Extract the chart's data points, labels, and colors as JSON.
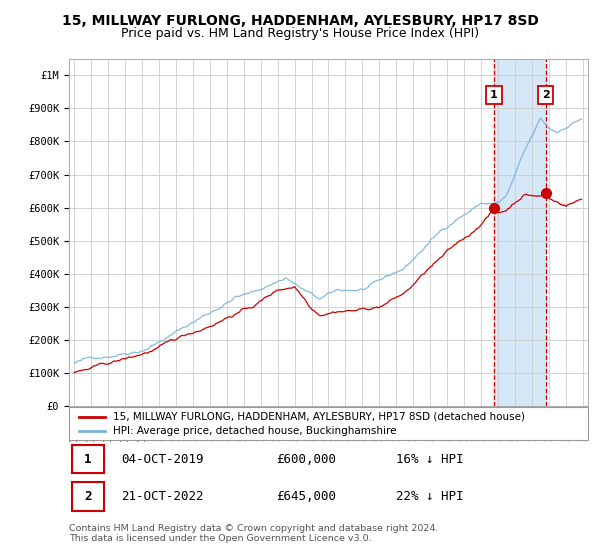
{
  "title": "15, MILLWAY FURLONG, HADDENHAM, AYLESBURY, HP17 8SD",
  "subtitle": "Price paid vs. HM Land Registry's House Price Index (HPI)",
  "ylabel_ticks": [
    "£0",
    "£100K",
    "£200K",
    "£300K",
    "£400K",
    "£500K",
    "£600K",
    "£700K",
    "£800K",
    "£900K",
    "£1M"
  ],
  "ytick_vals": [
    0,
    100000,
    200000,
    300000,
    400000,
    500000,
    600000,
    700000,
    800000,
    900000,
    1000000
  ],
  "ylim": [
    0,
    1050000
  ],
  "transaction1_date": 2019.75,
  "transaction1_price": 600000,
  "transaction2_date": 2022.8,
  "transaction2_price": 645000,
  "red_line_color": "#cc0000",
  "blue_line_color": "#7ab3d9",
  "shaded_color": "#d6e8f7",
  "legend1": "15, MILLWAY FURLONG, HADDENHAM, AYLESBURY, HP17 8SD (detached house)",
  "legend2": "HPI: Average price, detached house, Buckinghamshire",
  "table_row1": [
    "1",
    "04-OCT-2019",
    "£600,000",
    "16% ↓ HPI"
  ],
  "table_row2": [
    "2",
    "21-OCT-2022",
    "£645,000",
    "22% ↓ HPI"
  ],
  "footer": "Contains HM Land Registry data © Crown copyright and database right 2024.\nThis data is licensed under the Open Government Licence v3.0.",
  "background_color": "#ffffff",
  "grid_color": "#cccccc",
  "title_fontsize": 10,
  "subtitle_fontsize": 9,
  "tick_fontsize": 7.5
}
